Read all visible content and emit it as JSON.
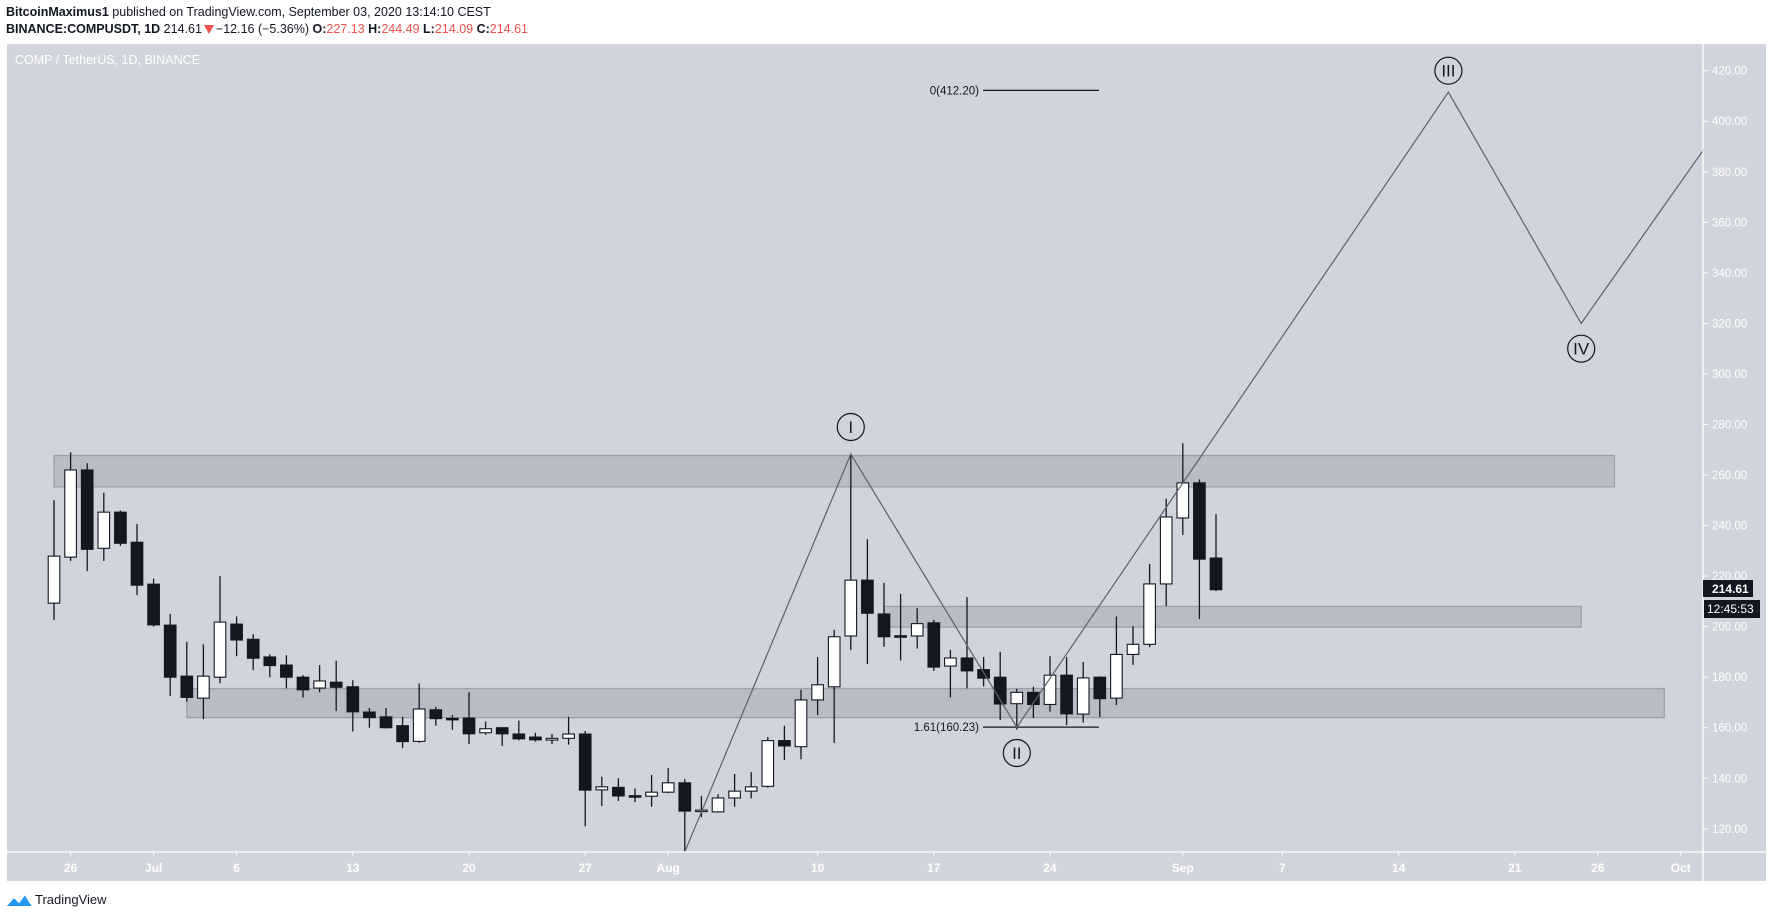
{
  "header": {
    "author": "BitcoinMaximus1",
    "published_text": "published on TradingView.com, September 03, 2020 13:14:10 CEST",
    "symbol": "BINANCE:COMPUSDT, 1D",
    "last": "214.61",
    "change": "−12.16 (−5.36%)",
    "o_label": "O:",
    "o": "227.13",
    "h_label": "H:",
    "h": "244.49",
    "l_label": "L:",
    "l": "214.09",
    "c_label": "C:",
    "c": "214.61",
    "direction": "down"
  },
  "chart": {
    "legend": "COMP / TetherUS, 1D, BINANCE",
    "last_price_badge": "214.61",
    "countdown_badge": "12:45:53",
    "colors": {
      "background": "#d1d4dc",
      "up_fill": "#ffffff",
      "down_fill": "#131722",
      "outline": "#131722",
      "zone_fill": "#b9bcc5",
      "zone_border": "#9da0a8",
      "wave_line": "#5d606b",
      "axis_text": "#ffffff",
      "badge_bg": "#131722"
    }
  },
  "chart_data": {
    "type": "candlestick",
    "title": "COMP / TetherUS, 1D, BINANCE",
    "xlabel": "",
    "ylabel": "",
    "ylim": [
      110,
      430
    ],
    "y_ticks": [
      "420.00",
      "400.00",
      "380.00",
      "360.00",
      "340.00",
      "320.00",
      "300.00",
      "280.00",
      "260.00",
      "240.00",
      "220.00",
      "200.00",
      "180.00",
      "160.00",
      "140.00",
      "120.00"
    ],
    "x_ticks": [
      {
        "label": "26",
        "day": 1
      },
      {
        "label": "Jul",
        "day": 6
      },
      {
        "label": "6",
        "day": 11
      },
      {
        "label": "13",
        "day": 18
      },
      {
        "label": "20",
        "day": 25
      },
      {
        "label": "27",
        "day": 32
      },
      {
        "label": "Aug",
        "day": 37
      },
      {
        "label": "10",
        "day": 46
      },
      {
        "label": "17",
        "day": 53
      },
      {
        "label": "24",
        "day": 60
      },
      {
        "label": "Sep",
        "day": 68
      },
      {
        "label": "7",
        "day": 74
      },
      {
        "label": "14",
        "day": 81
      },
      {
        "label": "21",
        "day": 88
      },
      {
        "label": "26",
        "day": 93
      },
      {
        "label": "Oct",
        "day": 98
      }
    ],
    "day0": "2020-06-25",
    "candles": [
      {
        "d": "Jun 25",
        "o": 209.3,
        "h": 250.0,
        "l": 202.7,
        "c": 227.9
      },
      {
        "d": "Jun 26",
        "o": 227.5,
        "h": 269.0,
        "l": 226.0,
        "c": 262.0
      },
      {
        "d": "Jun 27",
        "o": 262.0,
        "h": 264.7,
        "l": 222.0,
        "c": 230.6
      },
      {
        "d": "Jun 28",
        "o": 231.0,
        "h": 253.0,
        "l": 226.0,
        "c": 245.3
      },
      {
        "d": "Jun 29",
        "o": 245.3,
        "h": 246.0,
        "l": 232.0,
        "c": 233.0
      },
      {
        "d": "Jun 30",
        "o": 233.4,
        "h": 240.6,
        "l": 212.5,
        "c": 216.4
      },
      {
        "d": "Jul 1",
        "o": 216.8,
        "h": 219.0,
        "l": 200.0,
        "c": 200.7
      },
      {
        "d": "Jul 2",
        "o": 200.6,
        "h": 205.0,
        "l": 172.6,
        "c": 180.0
      },
      {
        "d": "Jul 3",
        "o": 180.4,
        "h": 194.0,
        "l": 170.3,
        "c": 172.0
      },
      {
        "d": "Jul 4",
        "o": 171.7,
        "h": 193.0,
        "l": 163.4,
        "c": 180.4
      },
      {
        "d": "Jul 5",
        "o": 180.0,
        "h": 220.0,
        "l": 177.6,
        "c": 201.8
      },
      {
        "d": "Jul 6",
        "o": 201.0,
        "h": 204.0,
        "l": 188.3,
        "c": 194.7
      },
      {
        "d": "Jul 7",
        "o": 195.0,
        "h": 197.0,
        "l": 182.8,
        "c": 187.5
      },
      {
        "d": "Jul 8",
        "o": 188.0,
        "h": 189.0,
        "l": 180.0,
        "c": 184.6
      },
      {
        "d": "Jul 9",
        "o": 184.8,
        "h": 188.7,
        "l": 175.6,
        "c": 180.0
      },
      {
        "d": "Jul 10",
        "o": 180.0,
        "h": 180.8,
        "l": 172.0,
        "c": 175.0
      },
      {
        "d": "Jul 11",
        "o": 175.7,
        "h": 184.8,
        "l": 174.0,
        "c": 178.5
      },
      {
        "d": "Jul 12",
        "o": 178.0,
        "h": 186.5,
        "l": 166.6,
        "c": 176.0
      },
      {
        "d": "Jul 13",
        "o": 176.2,
        "h": 178.8,
        "l": 158.5,
        "c": 166.3
      },
      {
        "d": "Jul 14",
        "o": 166.2,
        "h": 167.8,
        "l": 160.0,
        "c": 164.0
      },
      {
        "d": "Jul 15",
        "o": 164.3,
        "h": 167.8,
        "l": 159.7,
        "c": 160.0
      },
      {
        "d": "Jul 16",
        "o": 160.8,
        "h": 164.3,
        "l": 152.0,
        "c": 154.5
      },
      {
        "d": "Jul 17",
        "o": 154.6,
        "h": 177.5,
        "l": 154.0,
        "c": 167.4
      },
      {
        "d": "Jul 18",
        "o": 167.1,
        "h": 168.3,
        "l": 160.8,
        "c": 163.6
      },
      {
        "d": "Jul 19",
        "o": 163.7,
        "h": 165.0,
        "l": 159.2,
        "c": 163.6
      },
      {
        "d": "Jul 20",
        "o": 163.8,
        "h": 174.0,
        "l": 153.5,
        "c": 157.6
      },
      {
        "d": "Jul 21",
        "o": 158.0,
        "h": 162.5,
        "l": 157.2,
        "c": 159.6
      },
      {
        "d": "Jul 22",
        "o": 160.0,
        "h": 160.0,
        "l": 152.8,
        "c": 157.6
      },
      {
        "d": "Jul 23",
        "o": 157.5,
        "h": 162.8,
        "l": 155.0,
        "c": 155.6
      },
      {
        "d": "Jul 24",
        "o": 156.3,
        "h": 158.0,
        "l": 154.5,
        "c": 155.2
      },
      {
        "d": "Jul 25",
        "o": 155.1,
        "h": 157.5,
        "l": 153.5,
        "c": 155.8
      },
      {
        "d": "Jul 26",
        "o": 155.8,
        "h": 164.3,
        "l": 153.3,
        "c": 157.5
      },
      {
        "d": "Jul 27",
        "o": 157.5,
        "h": 158.7,
        "l": 121.0,
        "c": 135.3
      },
      {
        "d": "Jul 28",
        "o": 135.4,
        "h": 140.6,
        "l": 129.0,
        "c": 136.6
      },
      {
        "d": "Jul 29",
        "o": 136.4,
        "h": 140.0,
        "l": 131.0,
        "c": 133.0
      },
      {
        "d": "Jul 30",
        "o": 133.1,
        "h": 136.0,
        "l": 130.6,
        "c": 133.0
      },
      {
        "d": "Jul 31",
        "o": 132.9,
        "h": 141.3,
        "l": 128.7,
        "c": 134.5
      },
      {
        "d": "Aug 1",
        "o": 134.5,
        "h": 144.0,
        "l": 134.1,
        "c": 138.2
      },
      {
        "d": "Aug 2",
        "o": 138.2,
        "h": 139.6,
        "l": 110.9,
        "c": 127.0
      },
      {
        "d": "Aug 3",
        "o": 127.3,
        "h": 133.0,
        "l": 124.6,
        "c": 127.4
      },
      {
        "d": "Aug 4",
        "o": 126.7,
        "h": 133.7,
        "l": 126.4,
        "c": 132.2
      },
      {
        "d": "Aug 5",
        "o": 132.2,
        "h": 141.7,
        "l": 128.7,
        "c": 134.9
      },
      {
        "d": "Aug 6",
        "o": 134.9,
        "h": 142.4,
        "l": 132.0,
        "c": 136.6
      },
      {
        "d": "Aug 7",
        "o": 136.8,
        "h": 156.3,
        "l": 136.3,
        "c": 154.9
      },
      {
        "d": "Aug 8",
        "o": 154.9,
        "h": 160.8,
        "l": 147.2,
        "c": 152.8
      },
      {
        "d": "Aug 9",
        "o": 152.5,
        "h": 175.0,
        "l": 147.5,
        "c": 171.0
      },
      {
        "d": "Aug 10",
        "o": 171.0,
        "h": 188.0,
        "l": 165.0,
        "c": 177.0
      },
      {
        "d": "Aug 11",
        "o": 176.2,
        "h": 198.7,
        "l": 154.0,
        "c": 196.0
      },
      {
        "d": "Aug 12",
        "o": 196.3,
        "h": 268.3,
        "l": 190.8,
        "c": 218.4
      },
      {
        "d": "Aug 13",
        "o": 218.4,
        "h": 234.6,
        "l": 185.2,
        "c": 205.3
      },
      {
        "d": "Aug 14",
        "o": 205.0,
        "h": 217.3,
        "l": 192.0,
        "c": 196.0
      },
      {
        "d": "Aug 15",
        "o": 196.4,
        "h": 213.0,
        "l": 186.6,
        "c": 196.3
      },
      {
        "d": "Aug 16",
        "o": 196.3,
        "h": 207.3,
        "l": 191.3,
        "c": 201.2
      },
      {
        "d": "Aug 17",
        "o": 201.5,
        "h": 202.7,
        "l": 182.5,
        "c": 184.0
      },
      {
        "d": "Aug 18",
        "o": 184.4,
        "h": 190.8,
        "l": 172.0,
        "c": 187.6
      },
      {
        "d": "Aug 19",
        "o": 187.6,
        "h": 211.7,
        "l": 175.6,
        "c": 182.5
      },
      {
        "d": "Aug 20",
        "o": 183.0,
        "h": 188.0,
        "l": 176.3,
        "c": 179.6
      },
      {
        "d": "Aug 21",
        "o": 180.0,
        "h": 190.0,
        "l": 163.0,
        "c": 169.4
      },
      {
        "d": "Aug 22",
        "o": 169.5,
        "h": 175.4,
        "l": 159.3,
        "c": 174.0
      },
      {
        "d": "Aug 23",
        "o": 174.0,
        "h": 176.2,
        "l": 163.8,
        "c": 169.2
      },
      {
        "d": "Aug 24",
        "o": 169.2,
        "h": 188.3,
        "l": 166.3,
        "c": 180.8
      },
      {
        "d": "Aug 25",
        "o": 180.8,
        "h": 188.0,
        "l": 161.0,
        "c": 165.5
      },
      {
        "d": "Aug 26",
        "o": 165.4,
        "h": 186.0,
        "l": 162.0,
        "c": 179.7
      },
      {
        "d": "Aug 27",
        "o": 180.0,
        "h": 180.3,
        "l": 164.2,
        "c": 171.5
      },
      {
        "d": "Aug 28",
        "o": 171.7,
        "h": 204.0,
        "l": 169.0,
        "c": 189.0
      },
      {
        "d": "Aug 29",
        "o": 189.0,
        "h": 200.2,
        "l": 184.8,
        "c": 193.0
      },
      {
        "d": "Aug 30",
        "o": 193.0,
        "h": 224.8,
        "l": 191.9,
        "c": 216.9
      },
      {
        "d": "Aug 31",
        "o": 216.9,
        "h": 250.7,
        "l": 208.1,
        "c": 243.4
      },
      {
        "d": "Sep 1",
        "o": 243.0,
        "h": 272.6,
        "l": 236.3,
        "c": 256.9
      },
      {
        "d": "Sep 2",
        "o": 256.9,
        "h": 258.3,
        "l": 203.0,
        "c": 226.7
      },
      {
        "d": "Sep 3",
        "o": 227.13,
        "h": 244.49,
        "l": 214.09,
        "c": 214.61
      }
    ],
    "zones": [
      {
        "name": "resistance-zone-top",
        "from_day": 0,
        "to_day": 94,
        "low": 255.3,
        "high": 267.7
      },
      {
        "name": "support-zone-middle",
        "from_day": 50,
        "to_day": 92,
        "low": 199.8,
        "high": 208.0
      },
      {
        "name": "support-zone-bottom",
        "from_day": 8,
        "to_day": 97,
        "low": 164.0,
        "high": 175.5
      }
    ],
    "wave_path": [
      {
        "day": 38,
        "price": 110.9
      },
      {
        "day": 48,
        "price": 268.3
      },
      {
        "day": 58,
        "price": 160.2
      },
      {
        "day": 84,
        "price": 411.5
      },
      {
        "day": 92,
        "price": 320.0
      },
      {
        "day": 99.4,
        "price": 389.0
      }
    ],
    "wave_labels": [
      {
        "label": "I",
        "day": 48,
        "price": 279
      },
      {
        "label": "II",
        "day": 58,
        "price": 150
      },
      {
        "label": "III",
        "day": 84,
        "price": 420
      },
      {
        "label": "IV",
        "day": 92,
        "price": 310
      }
    ],
    "fib_levels": [
      {
        "label": "0(412.20)",
        "price": 412.2,
        "from_day": 56,
        "to_day": 63
      },
      {
        "label": "1.61(160.23)",
        "price": 160.23,
        "from_day": 56,
        "to_day": 63
      }
    ]
  },
  "footer": {
    "brand": "TradingView"
  }
}
